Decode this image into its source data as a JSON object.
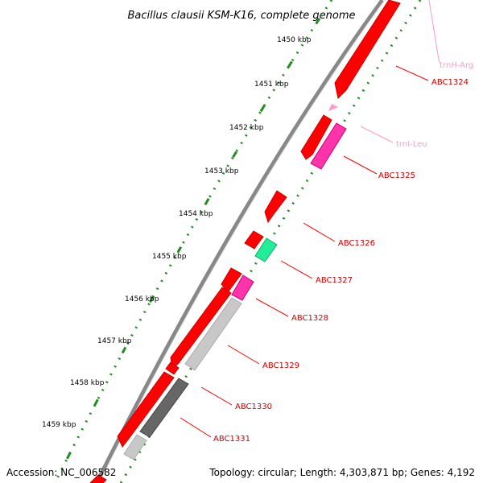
{
  "title": "Bacillus clausii KSM-K16, complete genome",
  "kbp_labels": [
    "1450 kbp",
    "1451 kbp",
    "1452 kbp",
    "1453 kbp",
    "1454 kbp",
    "1455 kbp",
    "1456 kbp",
    "1457 kbp",
    "1458 kbp",
    "1459 kbp"
  ],
  "genes": [
    {
      "label": "trnH-Arg",
      "type": "tRNA"
    },
    {
      "label": "ABC1324",
      "type": "CDS"
    },
    {
      "label": "trnI-Leu",
      "type": "tRNA"
    },
    {
      "label": "ABC1325",
      "type": "CDS"
    },
    {
      "label": "ABC1326",
      "type": "CDS"
    },
    {
      "label": "ABC1327",
      "type": "CDS"
    },
    {
      "label": "ABC1328",
      "type": "CDS"
    },
    {
      "label": "ABC1329",
      "type": "CDS"
    },
    {
      "label": "ABC1330",
      "type": "CDS"
    },
    {
      "label": "ABC1331",
      "type": "CDS"
    }
  ],
  "colors": {
    "cds": "#ff0000",
    "cds_label": "#cc0000",
    "trna": "#ff99cc",
    "magenta": "#ff33aa",
    "green_feature": "#22ee99",
    "light_gray": "#c8c8c8",
    "dark_gray": "#666666",
    "backbone": "#888888",
    "ticks": "#228b22"
  },
  "footer": {
    "accession": "Accession: NC_006582",
    "topology": "Topology: circular; Length: 4,303,871 bp; Genes: 4,192"
  }
}
